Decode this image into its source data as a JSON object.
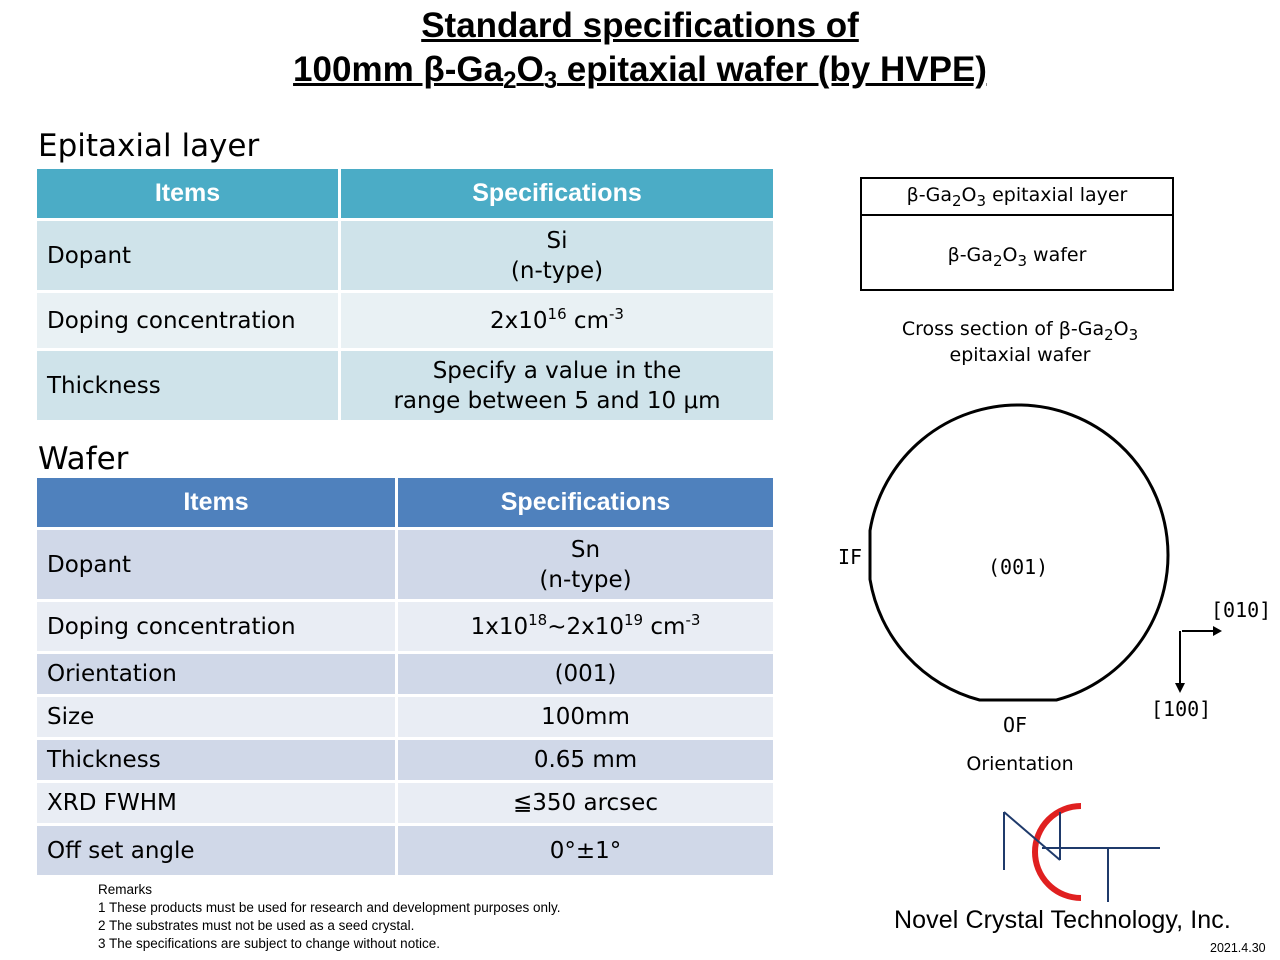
{
  "title": {
    "line1": "Standard specifications of",
    "line2_pre": "100mm β-Ga",
    "sub2": "2",
    "o": "O",
    "sub3": "3",
    "line2_post": " epitaxial wafer (by HVPE)"
  },
  "epitaxial": {
    "heading": "Epitaxial layer",
    "col_items": "Items",
    "col_specs": "Specifications",
    "dopant_label": "Dopant",
    "dopant_value_1": "Si",
    "dopant_value_2": "(n-type)",
    "doping_label": "Doping concentration",
    "doping_pre": "2x10",
    "doping_exp": "16",
    "doping_unit": " cm",
    "doping_unit_exp": "-3",
    "thickness_label": "Thickness",
    "thickness_value_1": "Specify a value in the",
    "thickness_value_2": "range between 5 and 10 μm"
  },
  "wafer": {
    "heading": "Wafer",
    "col_items": "Items",
    "col_specs": "Specifications",
    "dopant_label": "Dopant",
    "dopant_value_1": "Sn",
    "dopant_value_2": "(n-type)",
    "doping_label": "Doping concentration",
    "doping_a": "1x10",
    "doping_a_exp": "18",
    "doping_b": "~2x10",
    "doping_b_exp": "19",
    "doping_unit": " cm",
    "doping_unit_exp": "-3",
    "rows": [
      {
        "label": "Orientation",
        "value": "(001)"
      },
      {
        "label": "Size",
        "value": "100mm"
      },
      {
        "label": "Thickness",
        "value": "0.65 mm"
      },
      {
        "label": "XRD FWHM",
        "value": "≦350 arcsec"
      },
      {
        "label": "Off set angle",
        "value": "0°±1°"
      }
    ]
  },
  "cross_section": {
    "layer_pre": "β-Ga",
    "layer_sub2": "2",
    "layer_o": "O",
    "layer_sub3": "3",
    "layer_post": " epitaxial layer",
    "wafer_pre": "β-Ga",
    "wafer_sub2": "2",
    "wafer_o": "O",
    "wafer_sub3": "3",
    "wafer_post": " wafer",
    "caption_pre": "Cross section of β-Ga",
    "caption_sub2": "2",
    "caption_o": "O",
    "caption_sub3": "3",
    "caption_line2": "epitaxial wafer"
  },
  "orientation_diagram": {
    "center_label": "(001)",
    "if_label": "IF",
    "of_label": "OF",
    "dir_010": "[010]",
    "dir_100": "[100]",
    "caption": "Orientation"
  },
  "remarks": {
    "title": "Remarks",
    "items": [
      "1 These products must be used for research and development purposes only.",
      "2 The substrates must not be used as a seed crystal.",
      "3 The specifications are subject to change without notice."
    ]
  },
  "logo": {
    "letters": "NCT",
    "colors": {
      "red": "#e02020",
      "navy": "#1f3a6b"
    }
  },
  "company": "Novel Crystal Technology, Inc.",
  "date": "2021.4.30"
}
